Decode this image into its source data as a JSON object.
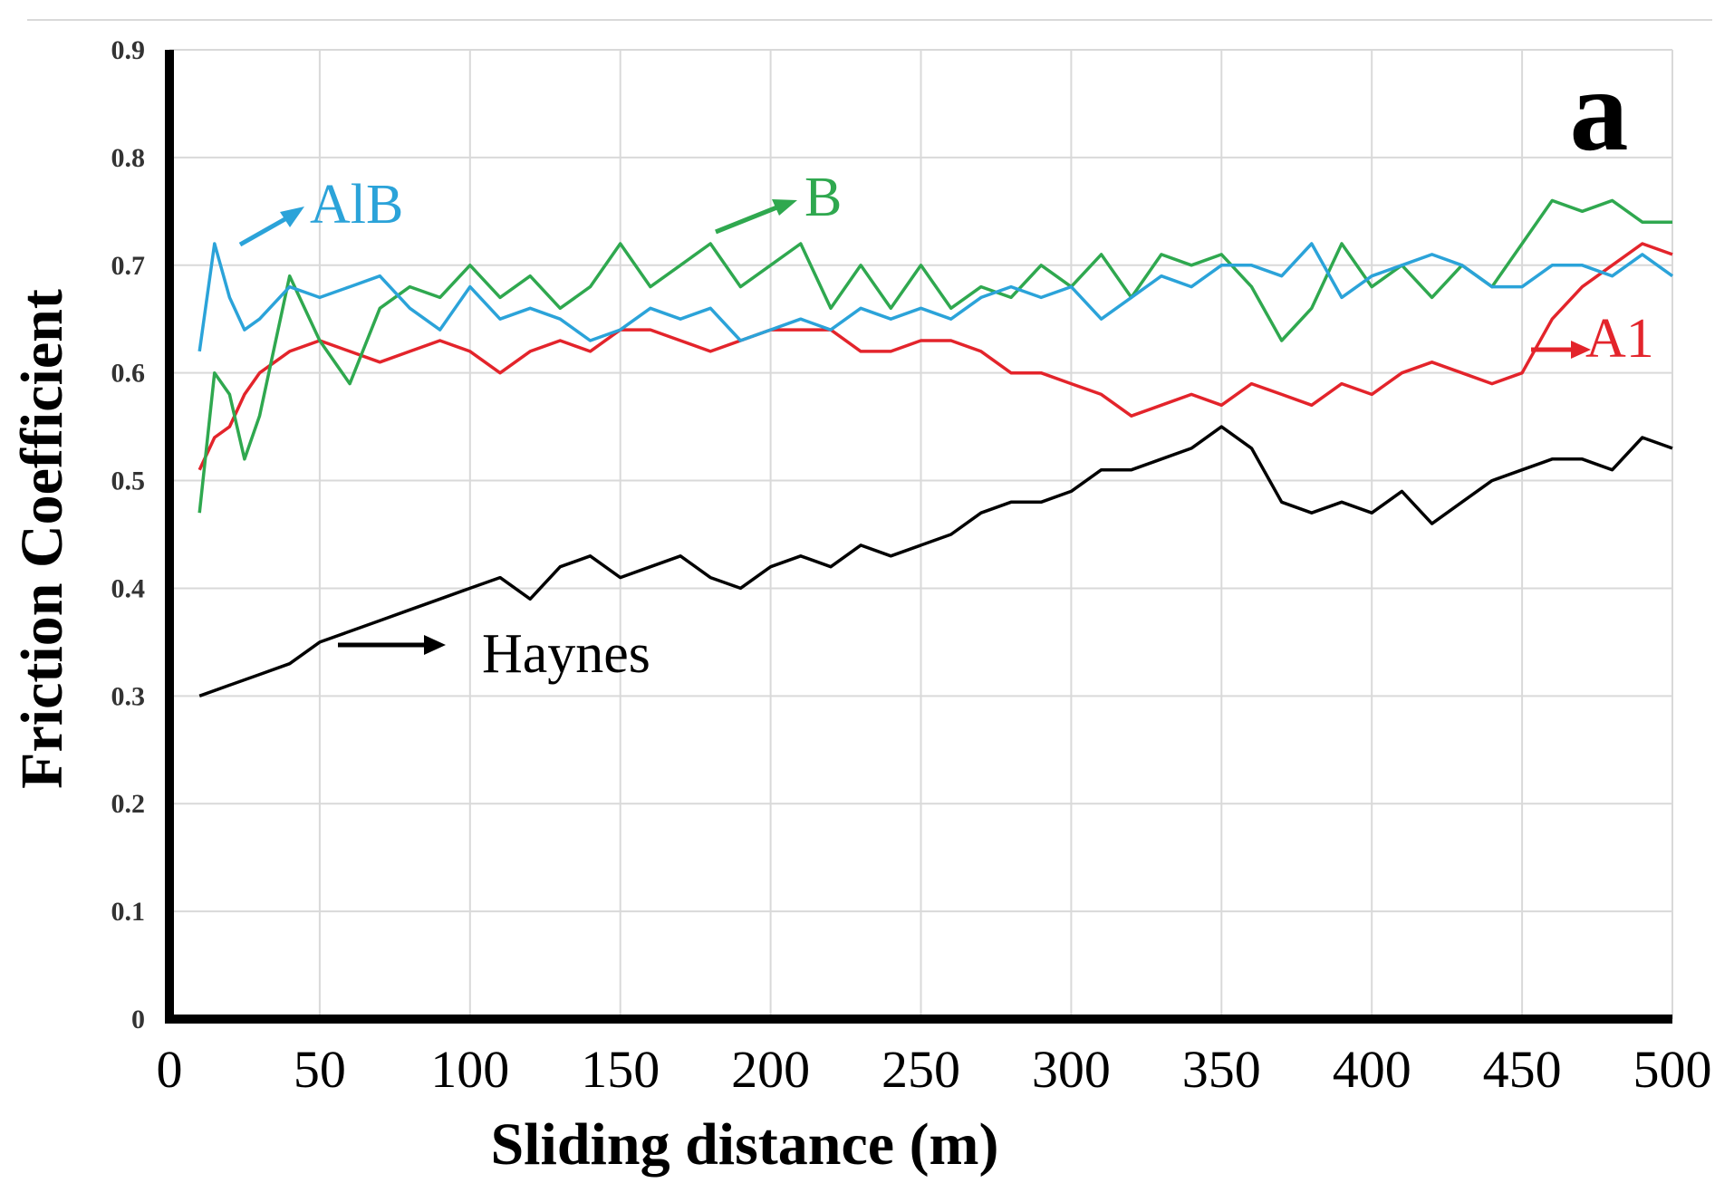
{
  "chart_data": {
    "type": "line",
    "panel_label": "a",
    "xlabel": "Sliding distance (m)",
    "ylabel": "Friction Coefficient",
    "xlim": [
      0,
      500
    ],
    "ylim": [
      0,
      0.9
    ],
    "x_ticks": [
      "0",
      "50",
      "100",
      "150",
      "200",
      "250",
      "300",
      "350",
      "400",
      "450",
      "500"
    ],
    "y_ticks": [
      "0",
      "0.1",
      "0.2",
      "0.3",
      "0.4",
      "0.5",
      "0.6",
      "0.7",
      "0.8",
      "0.9"
    ],
    "grid": true,
    "colors": {
      "Haynes": "#000000",
      "A1": "#e3242b",
      "B": "#2fa84f",
      "AlB": "#2ba3d9"
    },
    "series": [
      {
        "name": "Haynes",
        "label": "Haynes",
        "x": [
          10,
          20,
          30,
          40,
          50,
          60,
          70,
          80,
          90,
          100,
          110,
          120,
          130,
          140,
          150,
          160,
          170,
          180,
          190,
          200,
          210,
          220,
          230,
          240,
          250,
          260,
          270,
          280,
          290,
          300,
          310,
          320,
          330,
          340,
          350,
          360,
          370,
          380,
          390,
          400,
          410,
          420,
          430,
          440,
          450,
          460,
          470,
          480,
          490,
          500
        ],
        "values": [
          0.3,
          0.31,
          0.32,
          0.33,
          0.35,
          0.36,
          0.37,
          0.38,
          0.39,
          0.4,
          0.41,
          0.39,
          0.42,
          0.43,
          0.41,
          0.42,
          0.43,
          0.41,
          0.4,
          0.42,
          0.43,
          0.42,
          0.44,
          0.43,
          0.44,
          0.45,
          0.47,
          0.48,
          0.48,
          0.49,
          0.51,
          0.51,
          0.52,
          0.53,
          0.55,
          0.53,
          0.48,
          0.47,
          0.48,
          0.47,
          0.49,
          0.46,
          0.48,
          0.5,
          0.51,
          0.52,
          0.52,
          0.51,
          0.54,
          0.53
        ]
      },
      {
        "name": "A1",
        "label": "A1",
        "x": [
          10,
          15,
          20,
          25,
          30,
          40,
          50,
          60,
          70,
          80,
          90,
          100,
          110,
          120,
          130,
          140,
          150,
          160,
          170,
          180,
          190,
          200,
          210,
          220,
          230,
          240,
          250,
          260,
          270,
          280,
          290,
          300,
          310,
          320,
          330,
          340,
          350,
          360,
          370,
          380,
          390,
          400,
          410,
          420,
          430,
          440,
          450,
          460,
          470,
          480,
          490,
          500
        ],
        "values": [
          0.51,
          0.54,
          0.55,
          0.58,
          0.6,
          0.62,
          0.63,
          0.62,
          0.61,
          0.62,
          0.63,
          0.62,
          0.6,
          0.62,
          0.63,
          0.62,
          0.64,
          0.64,
          0.63,
          0.62,
          0.63,
          0.64,
          0.64,
          0.64,
          0.62,
          0.62,
          0.63,
          0.63,
          0.62,
          0.6,
          0.6,
          0.59,
          0.58,
          0.56,
          0.57,
          0.58,
          0.57,
          0.59,
          0.58,
          0.57,
          0.59,
          0.58,
          0.6,
          0.61,
          0.6,
          0.59,
          0.6,
          0.65,
          0.68,
          0.7,
          0.72,
          0.71
        ]
      },
      {
        "name": "B",
        "label": "B",
        "x": [
          10,
          15,
          20,
          25,
          30,
          40,
          50,
          60,
          70,
          80,
          90,
          100,
          110,
          120,
          130,
          140,
          150,
          160,
          170,
          180,
          190,
          200,
          210,
          220,
          230,
          240,
          250,
          260,
          270,
          280,
          290,
          300,
          310,
          320,
          330,
          340,
          350,
          360,
          370,
          380,
          390,
          400,
          410,
          420,
          430,
          440,
          450,
          460,
          470,
          480,
          490,
          500
        ],
        "values": [
          0.47,
          0.6,
          0.58,
          0.52,
          0.56,
          0.69,
          0.63,
          0.59,
          0.66,
          0.68,
          0.67,
          0.7,
          0.67,
          0.69,
          0.66,
          0.68,
          0.72,
          0.68,
          0.7,
          0.72,
          0.68,
          0.7,
          0.72,
          0.66,
          0.7,
          0.66,
          0.7,
          0.66,
          0.68,
          0.67,
          0.7,
          0.68,
          0.71,
          0.67,
          0.71,
          0.7,
          0.71,
          0.68,
          0.63,
          0.66,
          0.72,
          0.68,
          0.7,
          0.67,
          0.7,
          0.68,
          0.72,
          0.76,
          0.75,
          0.76,
          0.74,
          0.74
        ]
      },
      {
        "name": "AlB",
        "label": "AlB",
        "x": [
          10,
          15,
          20,
          25,
          30,
          40,
          50,
          60,
          70,
          80,
          90,
          100,
          110,
          120,
          130,
          140,
          150,
          160,
          170,
          180,
          190,
          200,
          210,
          220,
          230,
          240,
          250,
          260,
          270,
          280,
          290,
          300,
          310,
          320,
          330,
          340,
          350,
          360,
          370,
          380,
          390,
          400,
          410,
          420,
          430,
          440,
          450,
          460,
          470,
          480,
          490,
          500
        ],
        "values": [
          0.62,
          0.72,
          0.67,
          0.64,
          0.65,
          0.68,
          0.67,
          0.68,
          0.69,
          0.66,
          0.64,
          0.68,
          0.65,
          0.66,
          0.65,
          0.63,
          0.64,
          0.66,
          0.65,
          0.66,
          0.63,
          0.64,
          0.65,
          0.64,
          0.66,
          0.65,
          0.66,
          0.65,
          0.67,
          0.68,
          0.67,
          0.68,
          0.65,
          0.67,
          0.69,
          0.68,
          0.7,
          0.7,
          0.69,
          0.72,
          0.67,
          0.69,
          0.7,
          0.71,
          0.7,
          0.68,
          0.68,
          0.7,
          0.7,
          0.69,
          0.71,
          0.69
        ]
      }
    ]
  }
}
